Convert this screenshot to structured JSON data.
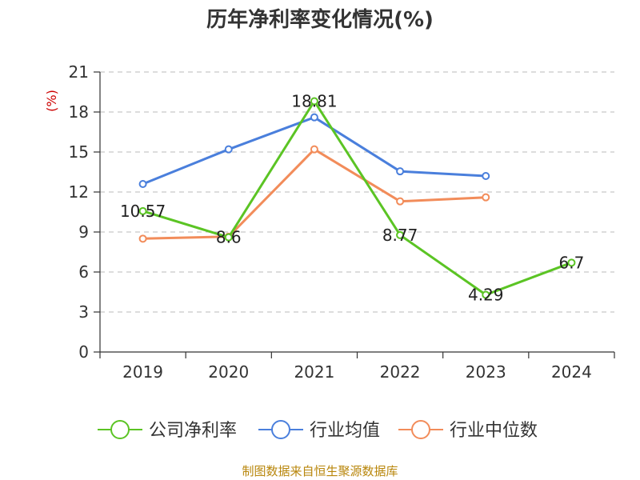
{
  "chart_data": {
    "type": "line",
    "title": "历年净利率变化情况(%)",
    "ylabel": "(%)",
    "categories": [
      "2019",
      "2020",
      "2021",
      "2022",
      "2023",
      "2024"
    ],
    "ylim": [
      0,
      21
    ],
    "yticks": [
      0,
      3,
      6,
      9,
      12,
      15,
      18,
      21
    ],
    "grid": true,
    "legend_position": "bottom",
    "series": [
      {
        "name": "公司净利率",
        "color": "#5bc424",
        "values": [
          10.57,
          8.6,
          18.81,
          8.77,
          4.29,
          6.7
        ],
        "show_labels": true
      },
      {
        "name": "行业均值",
        "color": "#4a7fdc",
        "values": [
          12.6,
          15.2,
          17.6,
          13.55,
          13.2,
          null
        ],
        "show_labels": false
      },
      {
        "name": "行业中位数",
        "color": "#f28c5a",
        "values": [
          8.5,
          8.65,
          15.2,
          11.3,
          11.6,
          null
        ],
        "show_labels": false
      }
    ]
  },
  "footer": "制图数据来自恒生聚源数据库"
}
